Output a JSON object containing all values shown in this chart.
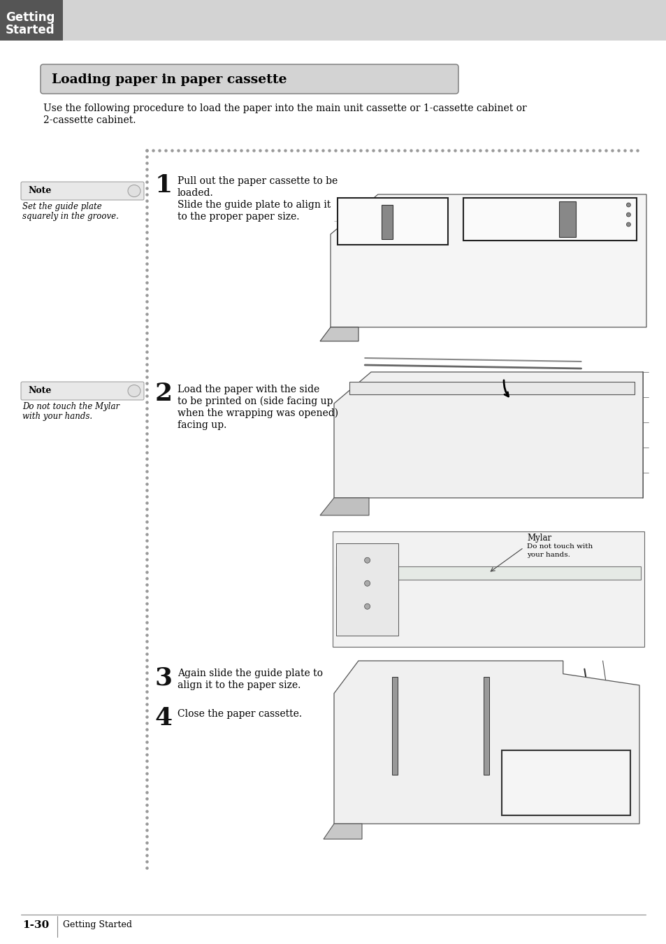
{
  "page_bg": "#ffffff",
  "header_bg": "#555555",
  "header_light_bg": "#d3d3d3",
  "header_text_color": "#ffffff",
  "section_title": "Loading paper in paper cassette",
  "section_title_bg": "#d3d3d3",
  "section_title_color": "#000000",
  "intro_text_line1": "Use the following procedure to load the paper into the main unit cassette or 1-cassette cabinet or",
  "intro_text_line2": "2-cassette cabinet.",
  "note_label": "Note",
  "note1_text_line1": "Set the guide plate",
  "note1_text_line2": "squarely in the groove.",
  "note2_text_line1": "Do not touch the Mylar",
  "note2_text_line2": "with your hands.",
  "step1_num": "1",
  "step1_line1": "Pull out the paper cassette to be",
  "step1_line2": "loaded.",
  "step1_line3": "Slide the guide plate to align it",
  "step1_line4": "to the proper paper size.",
  "step2_num": "2",
  "step2_line1": "Load the paper with the side",
  "step2_line2": "to be printed on (side facing up",
  "step2_line3": "when the wrapping was opened)",
  "step2_line4": "facing up.",
  "step3_num": "3",
  "step3_line1": "Again slide the guide plate to",
  "step3_line2": "align it to the paper size.",
  "step4_num": "4",
  "step4_line1": "Close the paper cassette.",
  "mylar_label": "Mylar",
  "mylar_note_line1": "Do not touch with",
  "mylar_note_line2": "your hands.",
  "footer_page": "1-30",
  "footer_text": "Getting Started",
  "dot_color": "#999999",
  "line_color": "#333333",
  "img_bg": "#ffffff",
  "img_border": "#555555",
  "sketch_color": "#444444",
  "note_bg": "#e8e8e8",
  "note_border": "#999999",
  "note_toggle_bg": "#e0e0e0",
  "note_toggle_circle": "#cccccc"
}
